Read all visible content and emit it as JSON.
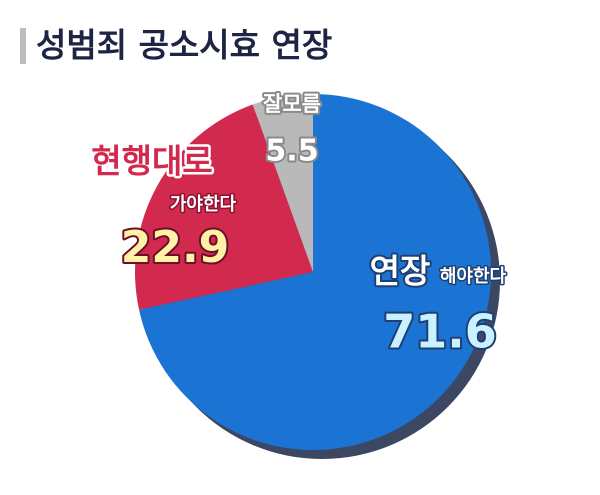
{
  "chart_data": {
    "type": "pie",
    "title": "성범죄 공소시효 연장",
    "categories": [
      [
        "연장",
        "해야한다"
      ],
      [
        "현행대로",
        "가야한다"
      ],
      [
        "잘모름"
      ]
    ],
    "values": [
      71.6,
      22.9,
      5.5
    ],
    "colors": [
      "#1b74d4",
      "#d2294f",
      "#b9b9b9"
    ]
  }
}
